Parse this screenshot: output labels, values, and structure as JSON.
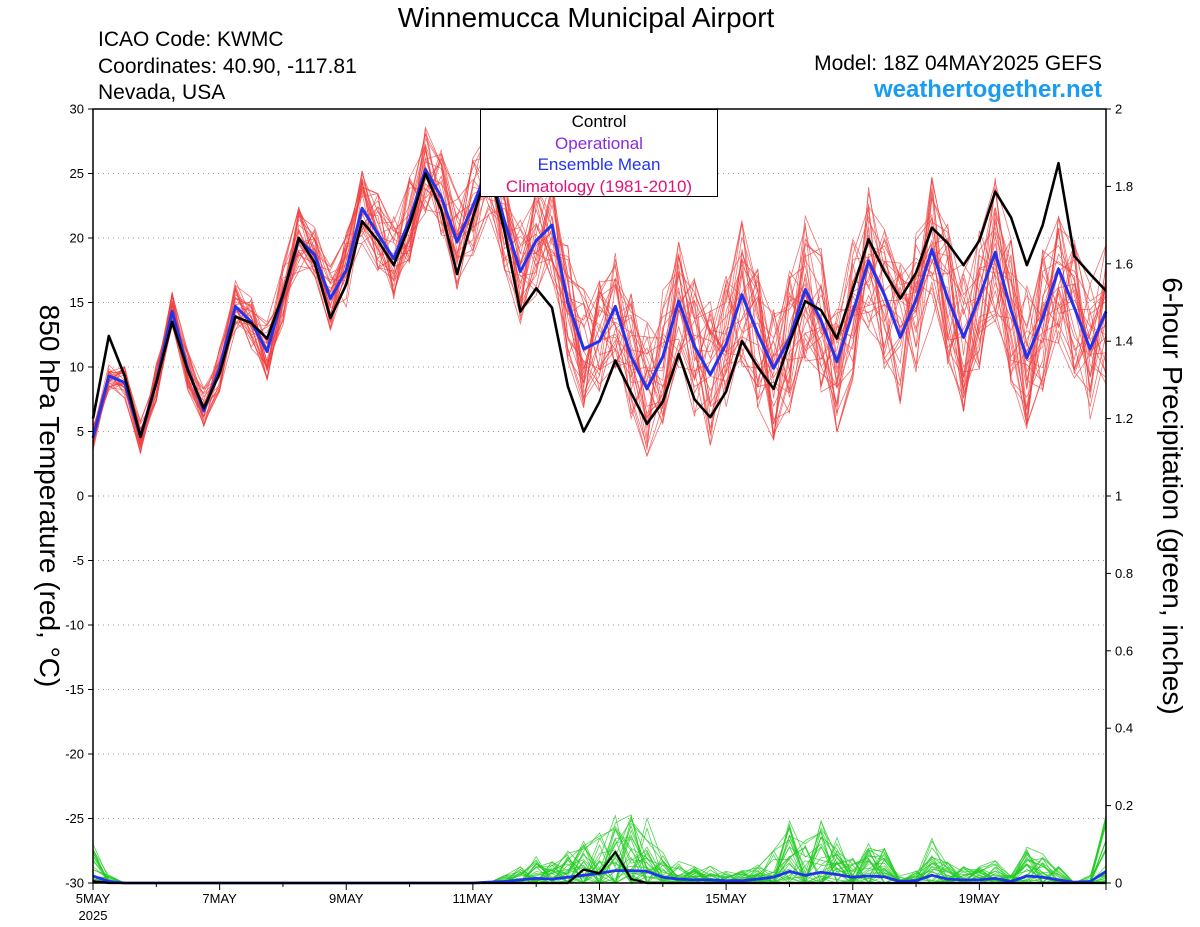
{
  "header": {
    "title": "Winnemucca Municipal Airport",
    "icao": "ICAO Code: KWMC",
    "coords": "Coordinates: 40.90, -117.81",
    "region": "Nevada, USA",
    "model": "Model: 18Z 04MAY2025 GEFS",
    "site": "weathertogether.net"
  },
  "legend": {
    "control": "Control",
    "operational": "Operational",
    "ensemble_mean": "Ensemble Mean",
    "climatology": "Climatology (1981-2010)"
  },
  "colors": {
    "control": "#000000",
    "operational": "#8a2be2",
    "ensemble_mean": "#2233ee",
    "climatology": "#e0147a",
    "members_temp": "#f04040",
    "members_precip": "#22cc22",
    "site": "#1a9cf0"
  },
  "chart_data": {
    "type": "line",
    "ylabel": "850 hPa Temperature (red, °C)",
    "y2label": "6-hour Precipitation (green, inches)",
    "ylim": [
      -30,
      30
    ],
    "y2lim": [
      0,
      2
    ],
    "yticks": [
      30,
      25,
      20,
      15,
      10,
      5,
      0,
      -5,
      -10,
      -15,
      -20,
      -25,
      -30
    ],
    "y2ticks": [
      2,
      1.8,
      1.6,
      1.4,
      1.2,
      1,
      0.8,
      0.6,
      0.4,
      0.2,
      0
    ],
    "xticks": [
      {
        "label": "5MAY",
        "sub": "2025",
        "t": 0
      },
      {
        "label": "7MAY",
        "t": 2
      },
      {
        "label": "9MAY",
        "t": 4
      },
      {
        "label": "11MAY",
        "t": 6
      },
      {
        "label": "13MAY",
        "t": 8
      },
      {
        "label": "15MAY",
        "t": 10
      },
      {
        "label": "17MAY",
        "t": 12
      },
      {
        "label": "19MAY",
        "t": 14
      }
    ],
    "x_range_days": [
      0,
      16
    ],
    "step_days": 0.25,
    "grid": "dotted-horizontal",
    "series": [
      {
        "role": "control",
        "values": [
          6,
          12.4,
          9.3,
          4.6,
          8.8,
          13.5,
          9.7,
          6.8,
          9.5,
          13.9,
          13.4,
          12.2,
          15.6,
          20,
          18.1,
          13.8,
          16.4,
          21.3,
          19.8,
          17.9,
          21,
          25,
          22.2,
          17.2,
          21.6,
          25.5,
          20.5,
          14.3,
          16.1,
          14.6,
          8.5,
          5,
          7.3,
          10.5,
          8,
          5.6,
          7.3,
          11,
          7.5,
          6.1,
          8.1,
          12,
          10,
          8.3,
          11.9,
          15.1,
          14.4,
          12.2,
          16,
          19.9,
          17.4,
          15.3,
          17.3,
          20.8,
          19.6,
          17.9,
          19.8,
          23.6,
          21.6,
          17.9,
          21,
          25.8,
          18.6,
          17.2,
          15.9
        ]
      },
      {
        "role": "ensemble_mean",
        "values": [
          4.5,
          9.3,
          8.8,
          4.6,
          8.8,
          14.3,
          9.8,
          6.6,
          9.9,
          14.7,
          13.5,
          11.2,
          15.6,
          19.9,
          18.7,
          15.3,
          17.5,
          22.3,
          20.3,
          18.4,
          21.4,
          25.3,
          23.2,
          19.7,
          22.5,
          25.5,
          21.3,
          17.4,
          19.8,
          21,
          15,
          11.4,
          12,
          14.7,
          10.8,
          8.3,
          10.8,
          15.1,
          11.6,
          9.4,
          11.8,
          15.6,
          12.6,
          9.9,
          12.2,
          16,
          13.6,
          10.4,
          14.2,
          18.2,
          15.6,
          12.3,
          15.2,
          19.1,
          15.3,
          12.3,
          15.4,
          18.9,
          14.4,
          10.7,
          13.8,
          17.6,
          14.6,
          11.4,
          14.3
        ]
      }
    ],
    "precip_series": [
      {
        "role": "control",
        "values": [
          0.005,
          0,
          0,
          0,
          0,
          0,
          0,
          0,
          0,
          0,
          0,
          0,
          0,
          0,
          0,
          0,
          0,
          0,
          0,
          0,
          0,
          0,
          0,
          0,
          0,
          0,
          0,
          0,
          0,
          0,
          0,
          0.035,
          0.025,
          0.08,
          0.01,
          0,
          0,
          0,
          0,
          0,
          0,
          0,
          0,
          0,
          0,
          0,
          0,
          0,
          0,
          0,
          0,
          0,
          0,
          0,
          0,
          0,
          0,
          0,
          0,
          0,
          0,
          0,
          0,
          0,
          0
        ]
      },
      {
        "role": "ensemble_mean",
        "values": [
          0.018,
          0.004,
          0,
          0,
          0,
          0,
          0,
          0,
          0,
          0,
          0,
          0,
          0,
          0,
          0,
          0,
          0,
          0,
          0,
          0,
          0,
          0,
          0,
          0,
          0,
          0.002,
          0.004,
          0.008,
          0.012,
          0.01,
          0.015,
          0.02,
          0.025,
          0.032,
          0.032,
          0.03,
          0.015,
          0.01,
          0.008,
          0.008,
          0.006,
          0.006,
          0.01,
          0.015,
          0.03,
          0.02,
          0.028,
          0.022,
          0.015,
          0.018,
          0.016,
          0.004,
          0.006,
          0.02,
          0.01,
          0.008,
          0.008,
          0.012,
          0.004,
          0.018,
          0.015,
          0.008,
          0.002,
          0.004,
          0.03
        ]
      }
    ]
  }
}
